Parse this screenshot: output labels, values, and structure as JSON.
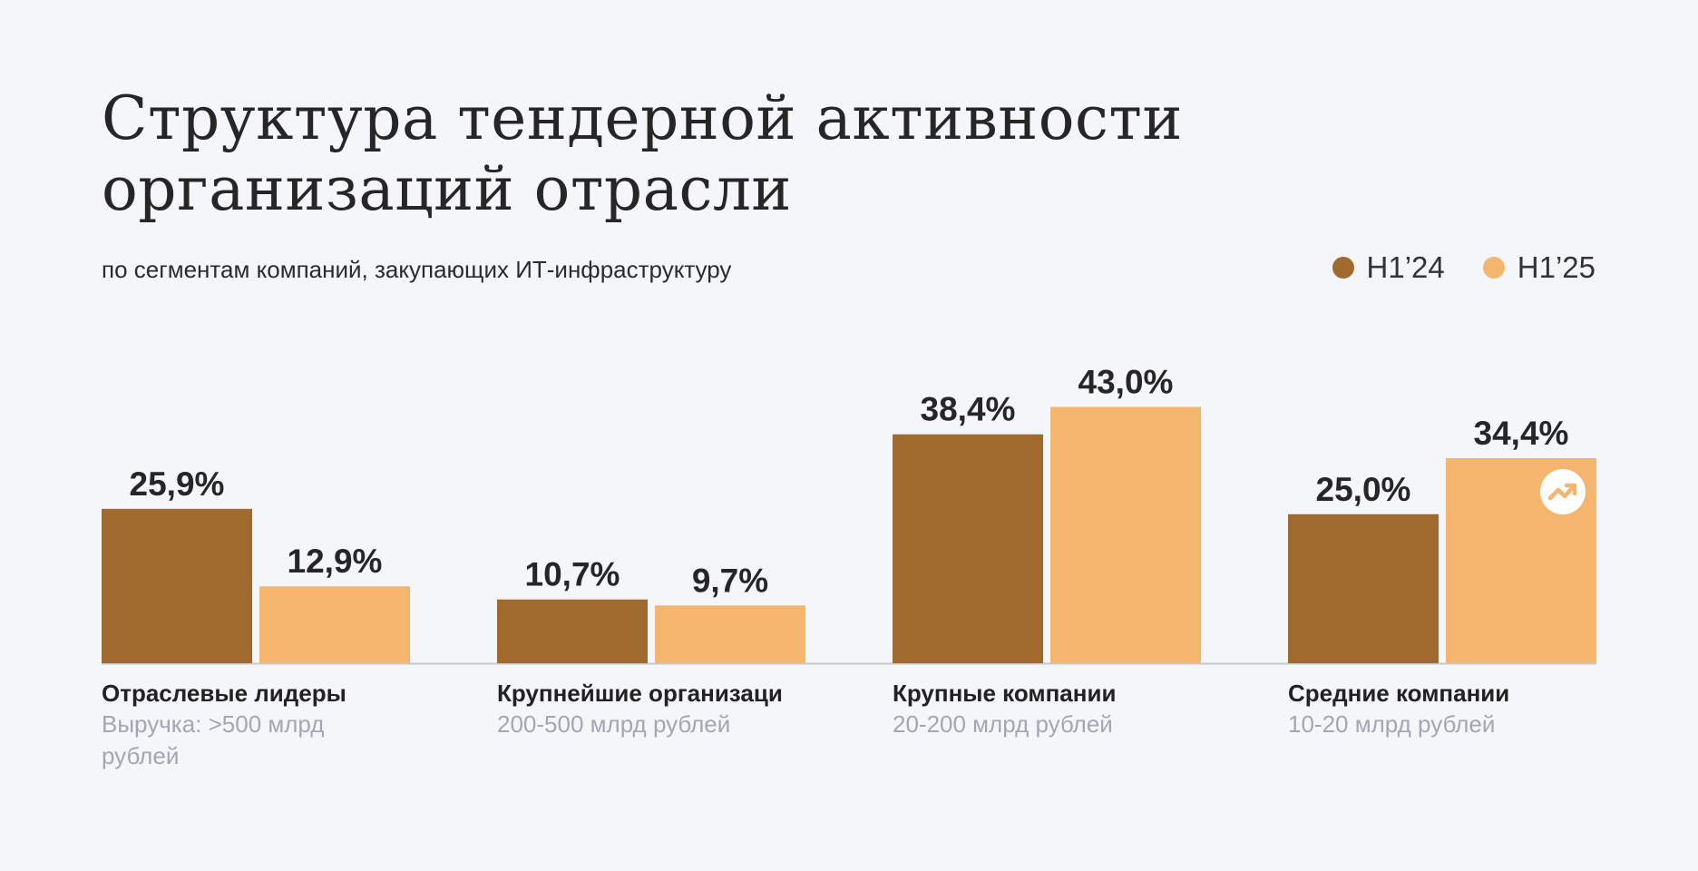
{
  "header": {
    "title": "Структура тендерной активности организаций отрасли",
    "subtitle": "по сегментам компаний, закупающих ИТ-инфраструктуру"
  },
  "colors": {
    "h124": "#a0692e",
    "h125": "#f4b66e",
    "axis": "#c8c8c8"
  },
  "chart_data": {
    "type": "bar",
    "title": "Структура тендерной активности организаций отрасли",
    "subtitle": "по сегментам компаний, закупающих ИТ-инфраструктуру",
    "categories": [
      "Отраслевые лидеры",
      "Крупнейшие организаци",
      "Крупные компании",
      "Средние компании"
    ],
    "category_notes": [
      "Выручка: >500 млрд рублей",
      "200-500 млрд рублей",
      "20-200 млрд рублей",
      "10-20 млрд рублей"
    ],
    "series": [
      {
        "name": "H1’24",
        "values": [
          25.9,
          10.7,
          38.4,
          25.0
        ],
        "labels": [
          "25,9%",
          "10,7%",
          "38,4%",
          "25,0%"
        ]
      },
      {
        "name": "H1’25",
        "values": [
          12.9,
          9.7,
          43.0,
          34.4
        ],
        "labels": [
          "12,9%",
          "9,7%",
          "43,0%",
          "34,4%"
        ]
      }
    ],
    "ylim": [
      0,
      50
    ],
    "legend": "top-right",
    "grid": false,
    "highlight_icon": "trend-up-icon"
  }
}
